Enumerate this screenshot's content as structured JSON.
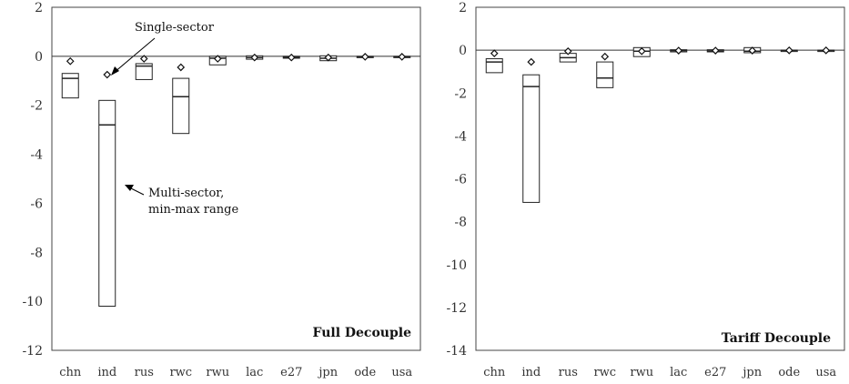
{
  "chart_data": [
    {
      "type": "box",
      "panel_label": "Full Decouple",
      "categories": [
        "chn",
        "ind",
        "rus",
        "rwc",
        "rwu",
        "lac",
        "e27",
        "jpn",
        "ode",
        "usa"
      ],
      "ylim": [
        -12,
        2
      ],
      "yticks": [
        2,
        0,
        -2,
        -4,
        -6,
        -8,
        -10,
        -12
      ],
      "tick_labels": [
        "2",
        "0",
        "-2",
        "-4",
        "-6",
        "-8",
        "-10",
        "-12"
      ],
      "series": [
        {
          "name": "Single-sector",
          "values": [
            -0.2,
            -0.75,
            -0.1,
            -0.45,
            -0.1,
            -0.05,
            -0.05,
            -0.05,
            -0.02,
            -0.02
          ]
        },
        {
          "name": "Multi-sector, min-max range",
          "min": [
            -1.7,
            -10.2,
            -0.95,
            -3.15,
            -0.35,
            -0.12,
            -0.08,
            -0.18,
            -0.04,
            -0.04
          ],
          "max": [
            -0.7,
            -1.8,
            -0.3,
            -0.9,
            0.0,
            0.02,
            0.0,
            0.02,
            0.0,
            0.0
          ],
          "median": [
            -0.9,
            -2.8,
            -0.4,
            -1.65,
            -0.08,
            -0.05,
            -0.04,
            -0.08,
            -0.02,
            -0.02
          ]
        }
      ],
      "annotations": [
        {
          "text": "Single-sector"
        },
        {
          "text": "Multi-sector,"
        },
        {
          "text": "min-max range"
        }
      ]
    },
    {
      "type": "box",
      "panel_label": "Tariff Decouple",
      "categories": [
        "chn",
        "ind",
        "rus",
        "rwc",
        "rwu",
        "lac",
        "e27",
        "jpn",
        "ode",
        "usa"
      ],
      "ylim": [
        -14,
        2
      ],
      "yticks": [
        2,
        0,
        -2,
        -4,
        -6,
        -8,
        -10,
        -12,
        -14
      ],
      "tick_labels": [
        "2",
        "0",
        "-2",
        "-4",
        "-6",
        "-8",
        "-10",
        "-12",
        "-14"
      ],
      "series": [
        {
          "name": "Single-sector",
          "values": [
            -0.15,
            -0.55,
            -0.05,
            -0.3,
            -0.05,
            -0.02,
            -0.02,
            -0.02,
            -0.01,
            -0.01
          ]
        },
        {
          "name": "Multi-sector, min-max range",
          "min": [
            -1.05,
            -7.1,
            -0.55,
            -1.75,
            -0.3,
            -0.08,
            -0.08,
            -0.12,
            -0.03,
            -0.03
          ],
          "max": [
            -0.4,
            -1.15,
            -0.15,
            -0.55,
            0.12,
            0.02,
            0.02,
            0.12,
            0.0,
            0.0
          ],
          "median": [
            -0.55,
            -1.7,
            -0.35,
            -1.3,
            -0.05,
            -0.02,
            -0.03,
            -0.05,
            -0.01,
            -0.01
          ]
        }
      ],
      "annotations": []
    }
  ]
}
